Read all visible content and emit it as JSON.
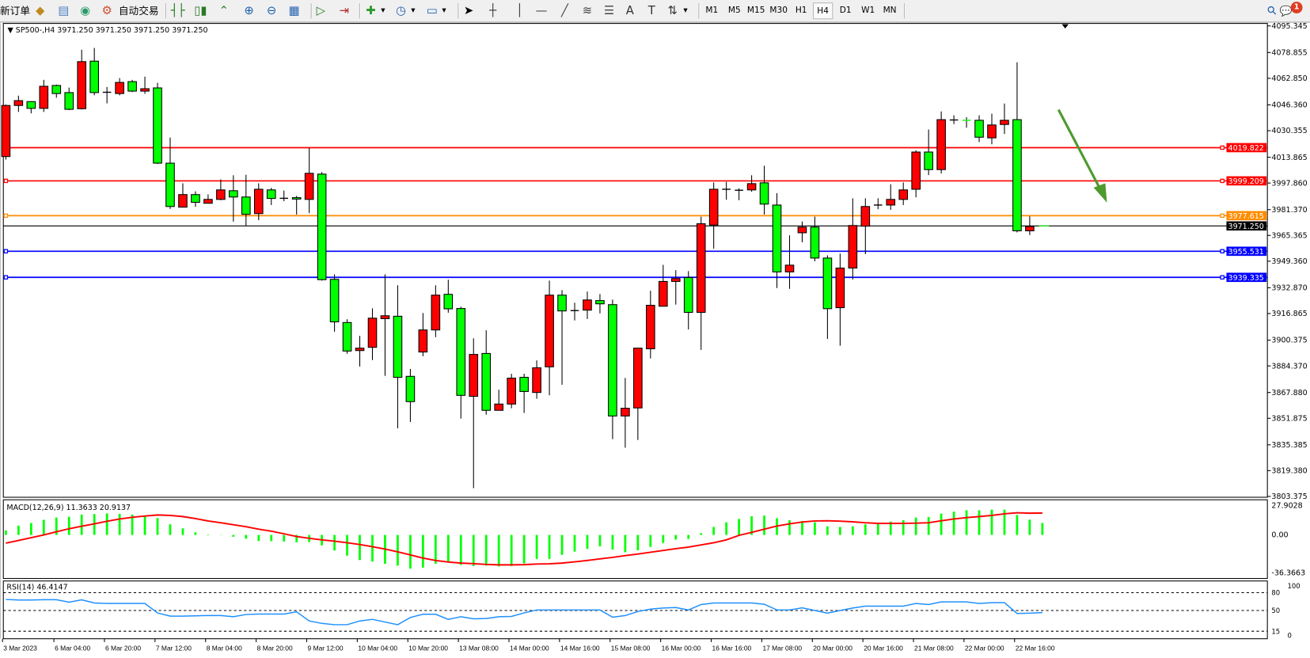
{
  "toolbar": {
    "new_order": "新订单",
    "auto_trading": "自动交易",
    "icons": [
      "expert-advisor-icon",
      "market-watch-icon",
      "signals-icon",
      "auto-trading-icon",
      "bar-chart-icon",
      "candlestick-chart-icon",
      "line-chart-icon",
      "zoom-in-icon",
      "zoom-out-icon",
      "tile-windows-icon",
      "auto-scroll-icon",
      "chart-shift-icon",
      "indicators-icon",
      "periods-icon",
      "templates-icon",
      "cursor-icon",
      "crosshair-icon",
      "vertical-line-icon",
      "horizontal-line-icon",
      "trendline-icon",
      "fibonacci-fan-icon",
      "fibonacci-retracement-icon",
      "text-icon",
      "text-label-icon",
      "arrows-icon"
    ],
    "timeframes": [
      "M1",
      "M5",
      "M15",
      "M30",
      "H1",
      "H4",
      "D1",
      "W1",
      "MN"
    ],
    "selected_timeframe": "H4",
    "notification_count": "1"
  },
  "chart": {
    "header": "SP500-,H4  3971.250 3971.250 3971.250 3971.250",
    "symbol": "SP500-",
    "timeframe": "H4",
    "current_price": "3971.250",
    "colors": {
      "bull": "#ff0000",
      "bear": "#00ff00",
      "outline": "#000000",
      "arrow": "#4f9a2f"
    },
    "price_ticks": [
      "4095.345",
      "4078.855",
      "4062.850",
      "4046.360",
      "4030.355",
      "4013.865",
      "3997.860",
      "3981.370",
      "3965.365",
      "3949.360",
      "3932.870",
      "3916.865",
      "3900.375",
      "3884.370",
      "3867.880",
      "3851.875",
      "3835.385",
      "3819.380",
      "3803.375"
    ],
    "levels": [
      {
        "price": "4019.822",
        "color": "#ff0000"
      },
      {
        "price": "3999.209",
        "color": "#ff0000"
      },
      {
        "price": "3977.615",
        "color": "#ff8c00"
      },
      {
        "price": "3955.531",
        "color": "#0000ff"
      },
      {
        "price": "3939.335",
        "color": "#0000ff"
      }
    ],
    "time_labels": [
      "3 Mar 2023",
      "6 Mar 04:00",
      "6 Mar 20:00",
      "7 Mar 12:00",
      "8 Mar 04:00",
      "8 Mar 20:00",
      "9 Mar 12:00",
      "10 Mar 04:00",
      "10 Mar 20:00",
      "13 Mar 08:00",
      "14 Mar 00:00",
      "14 Mar 16:00",
      "15 Mar 08:00",
      "16 Mar 00:00",
      "16 Mar 16:00",
      "17 Mar 08:00",
      "20 Mar 00:00",
      "20 Mar 16:00",
      "21 Mar 08:00",
      "22 Mar 00:00",
      "22 Mar 16:00"
    ]
  },
  "chart_data": [
    {
      "type": "candlestick",
      "title": "SP500-,H4",
      "ylim": [
        3803.375,
        4095.345
      ],
      "ohlc": [
        [
          4014.3,
          4046.6,
          4012.4,
          4046.0
        ],
        [
          4046.0,
          4052.1,
          4042.0,
          4049.0
        ],
        [
          4048.4,
          4048.4,
          4041.1,
          4044.2
        ],
        [
          4044.2,
          4061.9,
          4042.0,
          4057.9
        ],
        [
          4058.4,
          4059.0,
          4050.8,
          4053.4
        ],
        [
          4054.0,
          4057.1,
          4043.1,
          4043.6
        ],
        [
          4044.0,
          4080.6,
          4043.5,
          4073.2
        ],
        [
          4073.5,
          4081.7,
          4052.3,
          4054.0
        ],
        [
          4054.2,
          4057.5,
          4047.3,
          4054.2
        ],
        [
          4053.4,
          4063.0,
          4052.3,
          4060.3
        ],
        [
          4060.8,
          4061.9,
          4054.3,
          4054.9
        ],
        [
          4054.9,
          4063.9,
          4053.2,
          4056.4
        ],
        [
          4056.9,
          4060.1,
          4009.7,
          4010.2
        ],
        [
          4010.2,
          4026.1,
          3981.8,
          3983.3
        ],
        [
          3982.9,
          3997.7,
          3982.9,
          3990.7
        ],
        [
          3990.7,
          3992.7,
          3983.1,
          3985.9
        ],
        [
          3985.3,
          3990.8,
          3985.3,
          3987.7
        ],
        [
          3987.7,
          4000.1,
          3987.2,
          3993.6
        ],
        [
          3993.1,
          4002.7,
          3973.9,
          3989.2
        ],
        [
          3989.2,
          4003.0,
          3971.3,
          3978.5
        ],
        [
          3978.9,
          3997.7,
          3974.8,
          3994.0
        ],
        [
          3993.6,
          3994.9,
          3984.2,
          3988.3
        ],
        [
          3988.4,
          3993.2,
          3986.6,
          3988.4
        ],
        [
          3988.8,
          3989.9,
          3978.3,
          3987.9
        ],
        [
          3987.7,
          4019.6,
          3979.2,
          4003.9
        ],
        [
          4003.4,
          4004.7,
          3937.3,
          3937.9
        ],
        [
          3938.1,
          3941.2,
          3905.6,
          3911.7
        ],
        [
          3911.3,
          3913.3,
          3891.9,
          3893.6
        ],
        [
          3893.9,
          3903.0,
          3884.0,
          3895.4
        ],
        [
          3895.9,
          3920.1,
          3888.0,
          3914.0
        ],
        [
          3913.7,
          3941.2,
          3878.2,
          3915.5
        ],
        [
          3915.2,
          3934.4,
          3845.7,
          3877.3
        ],
        [
          3877.9,
          3882.5,
          3849.6,
          3862.2
        ],
        [
          3893.0,
          3917.2,
          3890.4,
          3906.7
        ],
        [
          3906.7,
          3934.4,
          3902.2,
          3928.3
        ],
        [
          3928.8,
          3937.9,
          3917.4,
          3919.8
        ],
        [
          3920.0,
          3921.1,
          3851.7,
          3866.1
        ],
        [
          3865.5,
          3901.5,
          3808.5,
          3891.5
        ],
        [
          3892.1,
          3906.5,
          3854.1,
          3856.8
        ],
        [
          3856.8,
          3869.6,
          3856.8,
          3860.7
        ],
        [
          3860.7,
          3879.5,
          3858.1,
          3876.8
        ],
        [
          3877.3,
          3879.5,
          3855.2,
          3868.5
        ],
        [
          3867.9,
          3887.8,
          3864.0,
          3883.2
        ],
        [
          3883.8,
          3937.3,
          3866.1,
          3928.3
        ],
        [
          3928.3,
          3931.4,
          3872.7,
          3918.5
        ],
        [
          3918.7,
          3923.6,
          3912.6,
          3918.7
        ],
        [
          3919.0,
          3930.5,
          3913.5,
          3925.3
        ],
        [
          3924.9,
          3929.0,
          3917.0,
          3922.9
        ],
        [
          3922.4,
          3925.5,
          3838.9,
          3853.3
        ],
        [
          3853.3,
          3876.9,
          3833.6,
          3858.1
        ],
        [
          3858.3,
          3895.4,
          3838.4,
          3895.4
        ],
        [
          3895.0,
          3931.0,
          3889.0,
          3922.0
        ],
        [
          3921.4,
          3947.1,
          3921.4,
          3936.8
        ],
        [
          3936.8,
          3943.8,
          3922.4,
          3938.6
        ],
        [
          3939.2,
          3943.2,
          3907.0,
          3917.6
        ],
        [
          3917.6,
          3977.0,
          3894.3,
          3972.6
        ],
        [
          3971.8,
          3998.2,
          3957.1,
          3994.0
        ],
        [
          3994.0,
          3998.6,
          3987.5,
          3994.0
        ],
        [
          3993.4,
          3994.5,
          3987.2,
          3993.4
        ],
        [
          3993.6,
          4002.7,
          3992.5,
          3997.5
        ],
        [
          3998.0,
          4008.6,
          3978.3,
          3984.8
        ],
        [
          3984.2,
          3991.6,
          3932.7,
          3942.7
        ],
        [
          3942.7,
          3965.4,
          3932.2,
          3946.9
        ],
        [
          3967.0,
          3974.0,
          3961.1,
          3970.5
        ],
        [
          3970.5,
          3977.0,
          3949.3,
          3951.3
        ],
        [
          3951.3,
          3953.0,
          3901.1,
          3919.9
        ],
        [
          3920.5,
          3954.1,
          3896.9,
          3945.1
        ],
        [
          3945.1,
          3988.4,
          3938.0,
          3971.5
        ],
        [
          3971.1,
          3988.4,
          3953.7,
          3983.3
        ],
        [
          3984.2,
          3988.4,
          3981.6,
          3984.2
        ],
        [
          3984.2,
          3997.1,
          3981.2,
          3987.7
        ],
        [
          3987.7,
          3998.2,
          3984.2,
          3993.6
        ],
        [
          3994.0,
          4018.2,
          3989.0,
          4017.1
        ],
        [
          4017.1,
          4031.1,
          4002.8,
          4006.2
        ],
        [
          4006.2,
          4042.3,
          4003.8,
          4037.2
        ],
        [
          4037.0,
          4039.9,
          4034.4,
          4037.0
        ],
        [
          4036.8,
          4038.7,
          4032.2,
          4036.8
        ],
        [
          4036.8,
          4039.9,
          4023.3,
          4026.3
        ],
        [
          4025.9,
          4040.9,
          4021.9,
          4033.9
        ],
        [
          4034.2,
          4047.2,
          4028.3,
          4036.8
        ],
        [
          4037.2,
          4072.8,
          3967.2,
          3968.2
        ],
        [
          3968.2,
          3977.2,
          3965.6,
          3970.9
        ],
        [
          3971.25,
          3971.25,
          3971.25,
          3971.25
        ]
      ]
    },
    {
      "type": "bar",
      "title": "MACD(12,26,9) 11.3633 20.9137",
      "ylim": [
        -36.3663,
        27.9028
      ],
      "tick_labels": [
        "27.9028",
        "0.00",
        "-36.3663"
      ],
      "histogram": [
        4.2,
        8.9,
        11.4,
        14.4,
        16.5,
        17.3,
        19.4,
        19.9,
        20.5,
        20.1,
        19.4,
        18.4,
        16.1,
        10.1,
        6.3,
        2.5,
        0.5,
        -0.2,
        -1.7,
        -3.6,
        -5.7,
        -5.9,
        -6.3,
        -7.0,
        -6.8,
        -9.9,
        -14.8,
        -19.7,
        -23.9,
        -25.4,
        -27.5,
        -29.2,
        -32.1,
        -31.1,
        -27.5,
        -26.4,
        -28.5,
        -29.6,
        -29.2,
        -30.0,
        -29.6,
        -27.1,
        -22.8,
        -22.8,
        -19.0,
        -15.9,
        -13.3,
        -10.8,
        -14.0,
        -16.5,
        -14.6,
        -11.4,
        -7.6,
        -4.4,
        -3.8,
        1.7,
        7.6,
        12.0,
        15.2,
        17.8,
        18.4,
        15.9,
        14.0,
        13.3,
        12.0,
        8.2,
        7.6,
        8.2,
        10.1,
        10.8,
        12.7,
        14.0,
        16.5,
        17.1,
        20.3,
        22.2,
        23.5,
        23.5,
        24.1,
        24.1,
        19.0,
        14.6,
        11.4
      ],
      "signal": [
        -7.8,
        -5.3,
        -2.6,
        0,
        3,
        5.9,
        8.3,
        10.6,
        13,
        15.2,
        16.8,
        18,
        19,
        18.6,
        17.5,
        15.6,
        13.3,
        11.6,
        9.7,
        7.8,
        5.5,
        3.6,
        1.1,
        -1.5,
        -3.2,
        -4.7,
        -5.9,
        -7.4,
        -9.1,
        -11.2,
        -13.5,
        -16.1,
        -19,
        -22,
        -24.3,
        -25.8,
        -26.8,
        -27.3,
        -28.1,
        -28.5,
        -28.5,
        -28.3,
        -27.7,
        -27.5,
        -26.8,
        -25.6,
        -24.3,
        -22.8,
        -21.4,
        -19.7,
        -18.2,
        -16.5,
        -14.8,
        -13.1,
        -11.6,
        -9.5,
        -7.4,
        -4.7,
        -0.4,
        2.5,
        5.5,
        8.5,
        10.6,
        12.3,
        13.3,
        13.5,
        13.1,
        12.5,
        11.6,
        11.0,
        11.0,
        11.0,
        11.2,
        11.6,
        13.5,
        15.2,
        16.5,
        17.5,
        18.6,
        20.1,
        21.1,
        20.7,
        20.9
      ],
      "colors": {
        "histogram": "#00ff00",
        "signal": "#ff0000"
      }
    },
    {
      "type": "line",
      "title": "RSI(14) 46.4147",
      "ylim": [
        0,
        100
      ],
      "levels": [
        80,
        50,
        15
      ],
      "tick_labels": [
        "100",
        "80",
        "50",
        "15",
        "0"
      ],
      "values": [
        68.6,
        67.7,
        67.7,
        68.2,
        68.2,
        64,
        68,
        62.7,
        61.8,
        61.8,
        61.8,
        61.8,
        45.9,
        40.5,
        40.5,
        41,
        41.5,
        41.5,
        39.5,
        43.2,
        44,
        44,
        44,
        47.7,
        32.3,
        28.2,
        26,
        26,
        32.3,
        35,
        30.5,
        26,
        38.2,
        43.6,
        43.6,
        35,
        39.5,
        35.9,
        36.4,
        39.5,
        40,
        45.9,
        50.9,
        50.9,
        50.9,
        50.9,
        50.9,
        50.9,
        38.6,
        41.4,
        48.2,
        52.3,
        54.1,
        55,
        50.9,
        60,
        62.7,
        62.7,
        62.7,
        62.7,
        60.5,
        50.9,
        50.9,
        54.5,
        50,
        45.5,
        50,
        54.1,
        57.3,
        57.3,
        57.3,
        57.3,
        61.8,
        60,
        64.5,
        64.5,
        64.5,
        61.8,
        63.2,
        63.2,
        45,
        45.5,
        46.4
      ],
      "color": "#1e90ff"
    }
  ]
}
